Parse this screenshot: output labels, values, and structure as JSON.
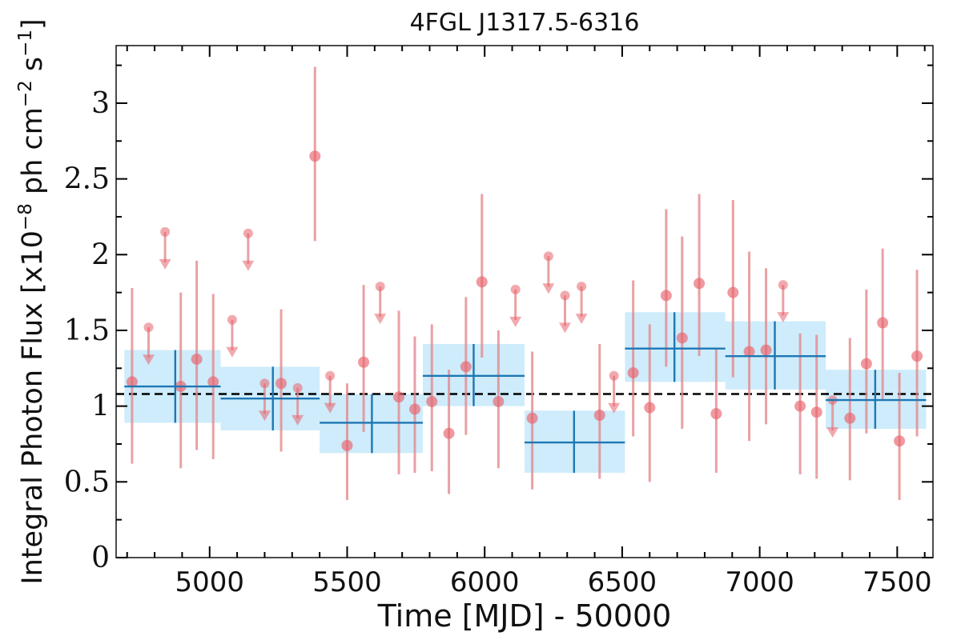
{
  "chart_data": {
    "type": "scatter",
    "title": "4FGL J1317.5-6316",
    "xlabel": "Time [MJD] - 50000",
    "ylabel_parts": [
      "Integral Photon Flux [x10",
      "−8",
      " ph cm",
      "−2",
      " s",
      "−1",
      "]"
    ],
    "xlim": [
      4660,
      7630
    ],
    "ylim": [
      0,
      3.38
    ],
    "x_ticks": [
      5000,
      5500,
      6000,
      6500,
      7000,
      7500
    ],
    "y_ticks": [
      0,
      0.5,
      1,
      1.5,
      2,
      2.5,
      3
    ],
    "y_tick_labels": [
      "0",
      "0.5",
      "1",
      "1.5",
      "2",
      "2.5",
      "3"
    ],
    "grid": false,
    "mean_flux": 1.08,
    "colors": {
      "points": "#e8636b",
      "errorbars": "#e38a8d",
      "bins": "#1f77b4",
      "bin_fill": "#aee0f9",
      "mean_line": "#000000"
    },
    "measurements": [
      {
        "x": 4718,
        "y": 1.16,
        "ylow": 0.62,
        "yhigh": 1.78
      },
      {
        "x": 4895,
        "y": 1.13,
        "ylow": 0.59,
        "yhigh": 1.75
      },
      {
        "x": 4953,
        "y": 1.31,
        "ylow": 0.71,
        "yhigh": 1.96
      },
      {
        "x": 5013,
        "y": 1.16,
        "ylow": 0.65,
        "yhigh": 1.74
      },
      {
        "x": 5260,
        "y": 1.15,
        "ylow": 0.7,
        "yhigh": 1.64
      },
      {
        "x": 5383,
        "y": 2.65,
        "ylow": 2.09,
        "yhigh": 3.24
      },
      {
        "x": 5500,
        "y": 0.74,
        "ylow": 0.38,
        "yhigh": 1.15
      },
      {
        "x": 5560,
        "y": 1.29,
        "ylow": 0.83,
        "yhigh": 1.8
      },
      {
        "x": 5688,
        "y": 1.06,
        "ylow": 0.55,
        "yhigh": 1.63
      },
      {
        "x": 5746,
        "y": 0.98,
        "ylow": 0.56,
        "yhigh": 1.46
      },
      {
        "x": 5808,
        "y": 1.03,
        "ylow": 0.57,
        "yhigh": 1.54
      },
      {
        "x": 5870,
        "y": 0.82,
        "ylow": 0.42,
        "yhigh": 1.24
      },
      {
        "x": 5932,
        "y": 1.26,
        "ylow": 0.81,
        "yhigh": 1.72
      },
      {
        "x": 5990,
        "y": 1.82,
        "ylow": 1.32,
        "yhigh": 2.4
      },
      {
        "x": 6050,
        "y": 1.03,
        "ylow": 0.59,
        "yhigh": 1.5
      },
      {
        "x": 6173,
        "y": 0.92,
        "ylow": 0.45,
        "yhigh": 1.36
      },
      {
        "x": 6418,
        "y": 0.94,
        "ylow": 0.52,
        "yhigh": 1.41
      },
      {
        "x": 6540,
        "y": 1.22,
        "ylow": 0.8,
        "yhigh": 1.83
      },
      {
        "x": 6600,
        "y": 0.99,
        "ylow": 0.5,
        "yhigh": 1.54
      },
      {
        "x": 6660,
        "y": 1.73,
        "ylow": 1.26,
        "yhigh": 2.3
      },
      {
        "x": 6718,
        "y": 1.45,
        "ylow": 0.85,
        "yhigh": 2.12
      },
      {
        "x": 6780,
        "y": 1.81,
        "ylow": 1.33,
        "yhigh": 2.4
      },
      {
        "x": 6842,
        "y": 0.95,
        "ylow": 0.56,
        "yhigh": 1.38
      },
      {
        "x": 6903,
        "y": 1.75,
        "ylow": 1.19,
        "yhigh": 2.36
      },
      {
        "x": 6962,
        "y": 1.36,
        "ylow": 0.77,
        "yhigh": 2.02
      },
      {
        "x": 7023,
        "y": 1.37,
        "ylow": 0.88,
        "yhigh": 1.91
      },
      {
        "x": 7147,
        "y": 1.0,
        "ylow": 0.55,
        "yhigh": 1.48
      },
      {
        "x": 7207,
        "y": 0.96,
        "ylow": 0.52,
        "yhigh": 1.47
      },
      {
        "x": 7328,
        "y": 0.92,
        "ylow": 0.51,
        "yhigh": 1.45
      },
      {
        "x": 7388,
        "y": 1.28,
        "ylow": 0.82,
        "yhigh": 1.77
      },
      {
        "x": 7447,
        "y": 1.55,
        "ylow": 1.04,
        "yhigh": 2.04
      },
      {
        "x": 7508,
        "y": 0.77,
        "ylow": 0.38,
        "yhigh": 1.22
      },
      {
        "x": 7572,
        "y": 1.33,
        "ylow": 0.8,
        "yhigh": 1.9
      }
    ],
    "upper_limits": [
      {
        "x": 4778,
        "y": 1.52
      },
      {
        "x": 4838,
        "y": 2.15
      },
      {
        "x": 5082,
        "y": 1.57
      },
      {
        "x": 5140,
        "y": 2.14
      },
      {
        "x": 5200,
        "y": 1.15
      },
      {
        "x": 5320,
        "y": 1.12
      },
      {
        "x": 5438,
        "y": 1.2
      },
      {
        "x": 5620,
        "y": 1.79
      },
      {
        "x": 6112,
        "y": 1.77
      },
      {
        "x": 6232,
        "y": 1.99
      },
      {
        "x": 6292,
        "y": 1.73
      },
      {
        "x": 6352,
        "y": 1.79
      },
      {
        "x": 6470,
        "y": 1.2
      },
      {
        "x": 7085,
        "y": 1.8
      },
      {
        "x": 7265,
        "y": 1.04
      }
    ],
    "bins": [
      {
        "xmin": 4690,
        "xmax": 5040,
        "xcenter": 4875,
        "y": 1.13,
        "ylow": 0.89,
        "yhigh": 1.37
      },
      {
        "xmin": 5040,
        "xmax": 5400,
        "xcenter": 5230,
        "y": 1.05,
        "ylow": 0.84,
        "yhigh": 1.26
      },
      {
        "xmin": 5400,
        "xmax": 5775,
        "xcenter": 5590,
        "y": 0.89,
        "ylow": 0.69,
        "yhigh": 1.08
      },
      {
        "xmin": 5775,
        "xmax": 6145,
        "xcenter": 5960,
        "y": 1.2,
        "ylow": 1.0,
        "yhigh": 1.41
      },
      {
        "xmin": 6145,
        "xmax": 6510,
        "xcenter": 6325,
        "y": 0.76,
        "ylow": 0.56,
        "yhigh": 0.97
      },
      {
        "xmin": 6510,
        "xmax": 6875,
        "xcenter": 6690,
        "y": 1.38,
        "ylow": 1.16,
        "yhigh": 1.62
      },
      {
        "xmin": 6875,
        "xmax": 7240,
        "xcenter": 7055,
        "y": 1.33,
        "ylow": 1.11,
        "yhigh": 1.56
      },
      {
        "xmin": 7240,
        "xmax": 7605,
        "xcenter": 7420,
        "y": 1.04,
        "ylow": 0.85,
        "yhigh": 1.24
      }
    ]
  }
}
